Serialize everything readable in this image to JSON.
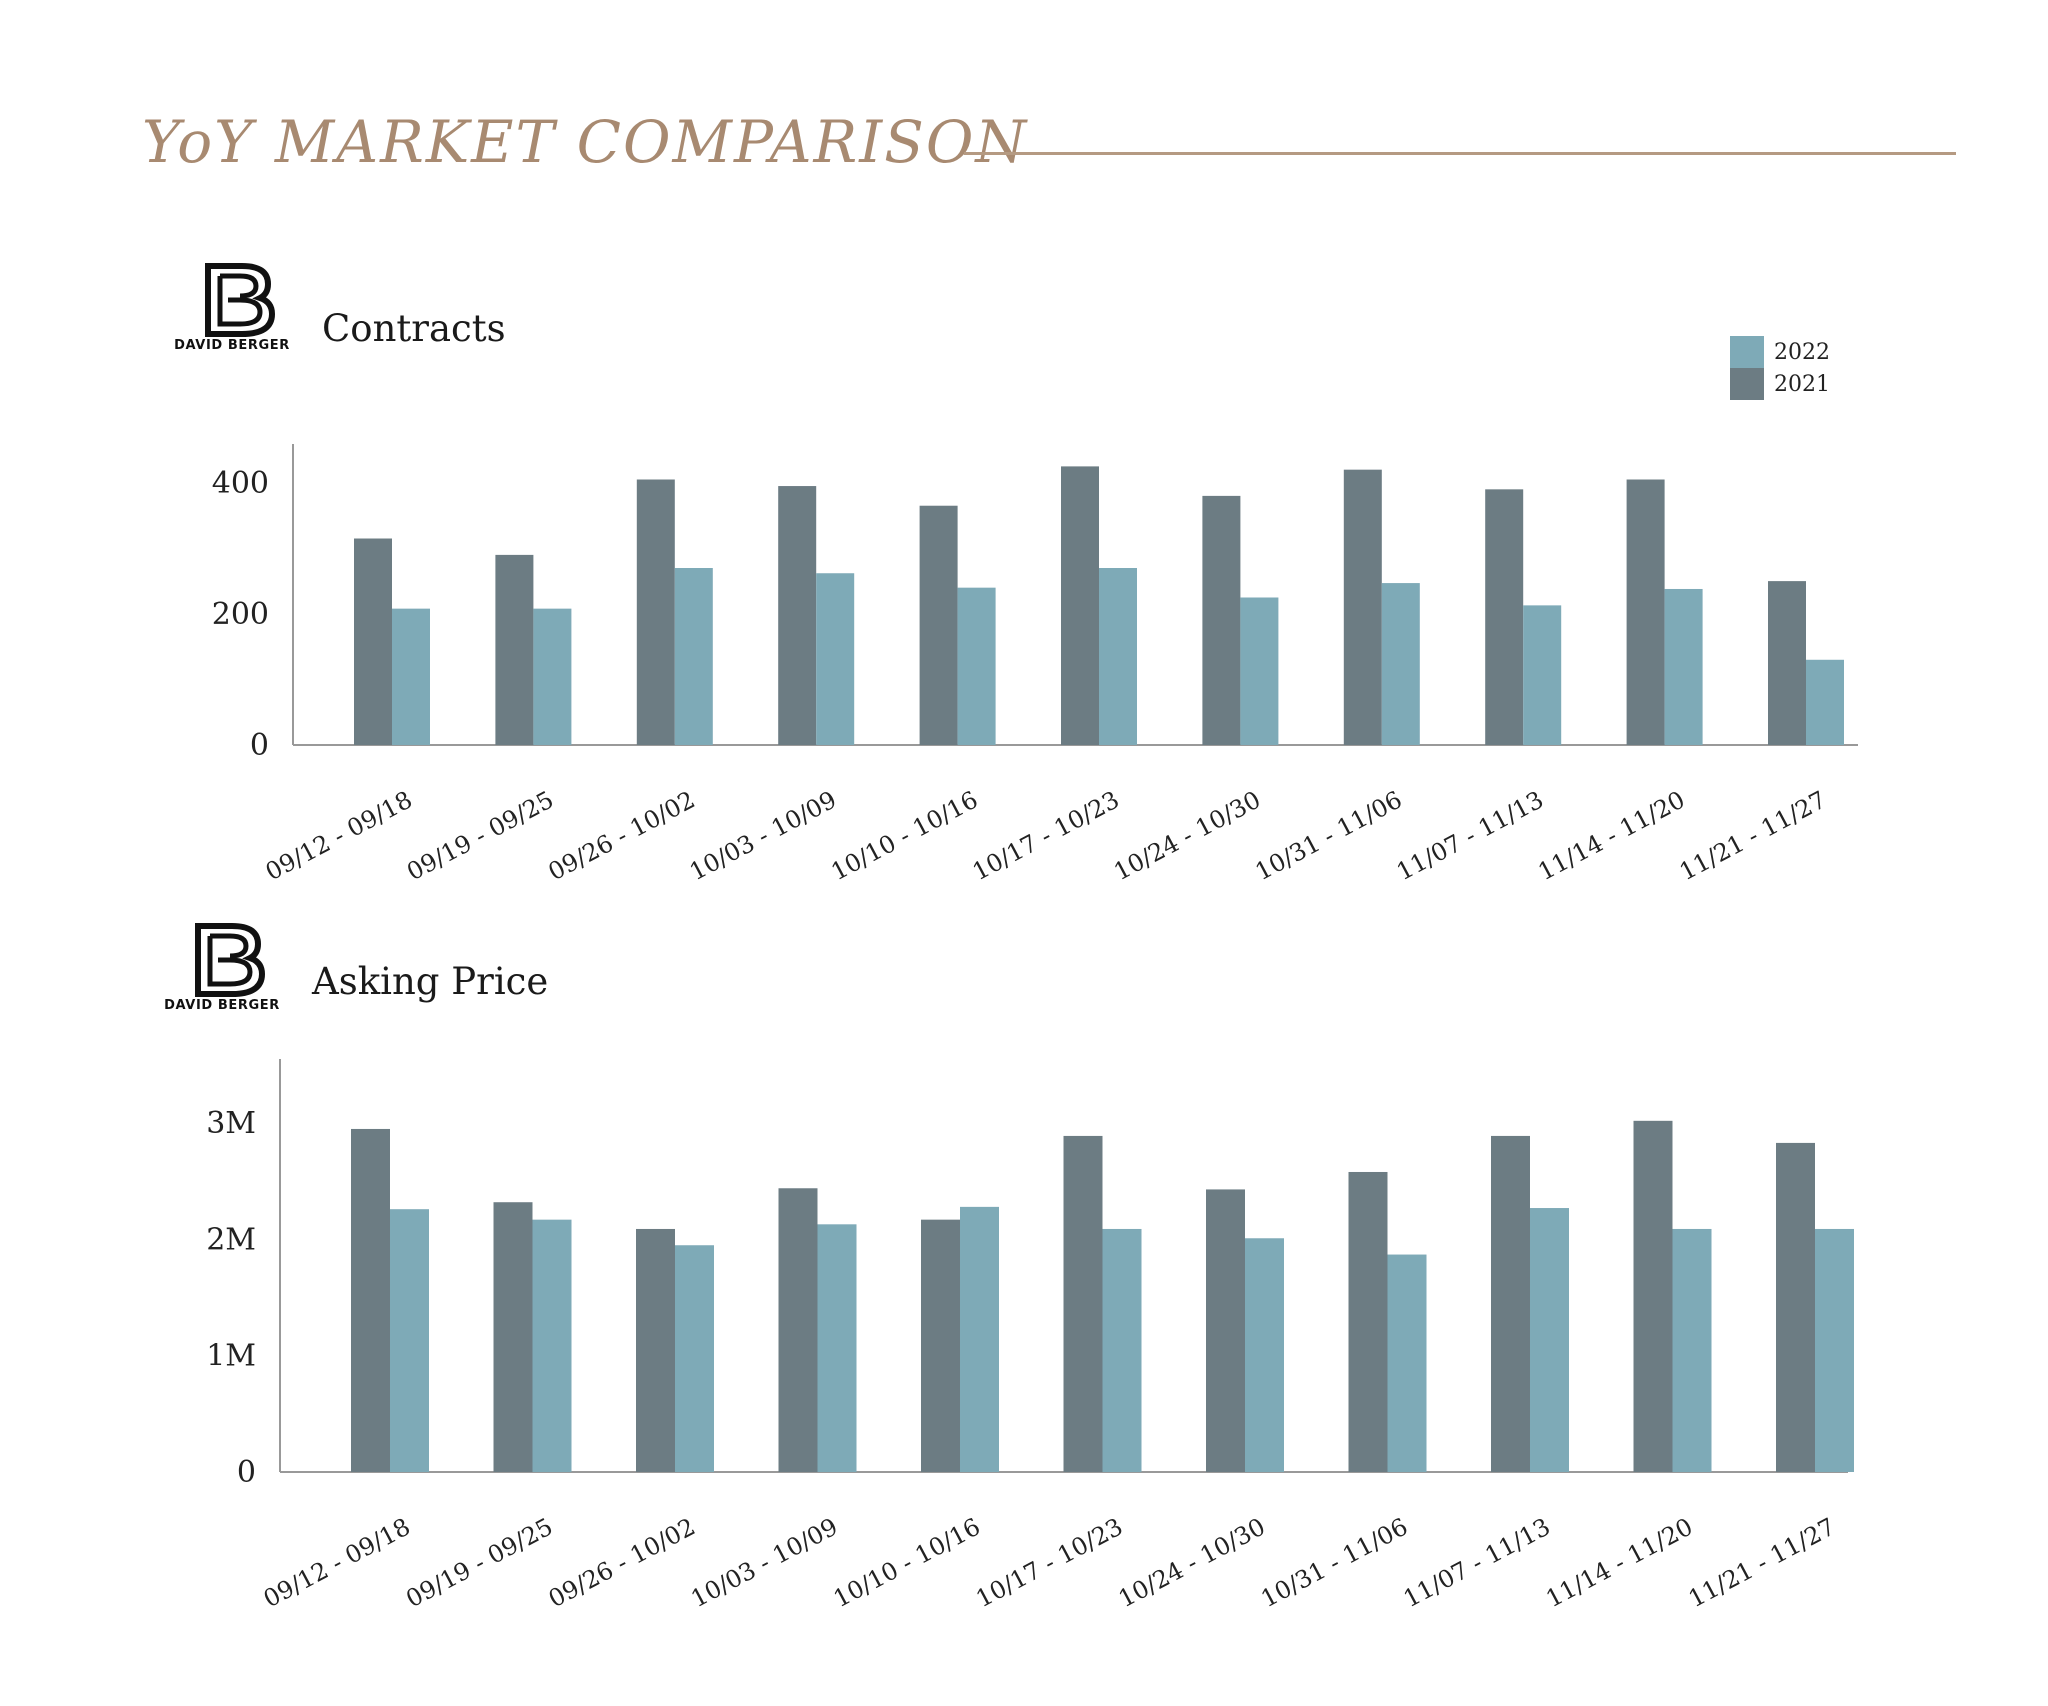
{
  "page": {
    "title": "YoY MARKET COMPARISON",
    "accent_color": "#a88a71"
  },
  "logo": {
    "text": "DAVID BERGER",
    "icon": "db-monogram-icon"
  },
  "legend": [
    {
      "label": "2022",
      "color": "#7eaab7"
    },
    {
      "label": "2021",
      "color": "#6c7c83"
    }
  ],
  "chart_data": [
    {
      "type": "bar",
      "title": "Contracts",
      "categories": [
        "09/12 - 09/18",
        "09/19 - 09/25",
        "09/26 - 10/02",
        "10/03 - 10/09",
        "10/10 - 10/16",
        "10/17 - 10/23",
        "10/24 - 10/30",
        "10/31 - 11/06",
        "11/07 - 11/13",
        "11/14 - 11/20",
        "11/21 - 11/27"
      ],
      "series": [
        {
          "name": "2021",
          "color": "#6c7c83",
          "values": [
            315,
            290,
            405,
            395,
            365,
            425,
            380,
            420,
            390,
            405,
            250
          ]
        },
        {
          "name": "2022",
          "color": "#7eaab7",
          "values": [
            208,
            208,
            270,
            262,
            240,
            270,
            225,
            247,
            213,
            238,
            130
          ]
        }
      ],
      "ylim": [
        0,
        450
      ],
      "yticks": [
        0,
        200,
        400
      ],
      "ytick_labels": [
        "0",
        "200",
        "400"
      ],
      "legend": "top-right",
      "grid": false
    },
    {
      "type": "bar",
      "title": "Asking Price",
      "categories": [
        "09/12 - 09/18",
        "09/19 - 09/25",
        "09/26 - 10/02",
        "10/03 - 10/09",
        "10/10 - 10/16",
        "10/17 - 10/23",
        "10/24 - 10/30",
        "10/31 - 11/06",
        "11/07 - 11/13",
        "11/14 - 11/20",
        "11/21 - 11/27"
      ],
      "series": [
        {
          "name": "2021",
          "color": "#6c7c83",
          "values": [
            2950000,
            2320000,
            2090000,
            2440000,
            2170000,
            2890000,
            2430000,
            2580000,
            2890000,
            3020000,
            2830000
          ]
        },
        {
          "name": "2022",
          "color": "#7eaab7",
          "values": [
            2260000,
            2170000,
            1950000,
            2130000,
            2280000,
            2090000,
            2010000,
            1870000,
            2270000,
            2090000,
            2090000
          ]
        }
      ],
      "ylim": [
        0,
        3500000
      ],
      "yticks": [
        0,
        1000000,
        2000000,
        3000000
      ],
      "ytick_labels": [
        "0",
        "1M",
        "2M",
        "3M"
      ],
      "grid": false
    }
  ]
}
